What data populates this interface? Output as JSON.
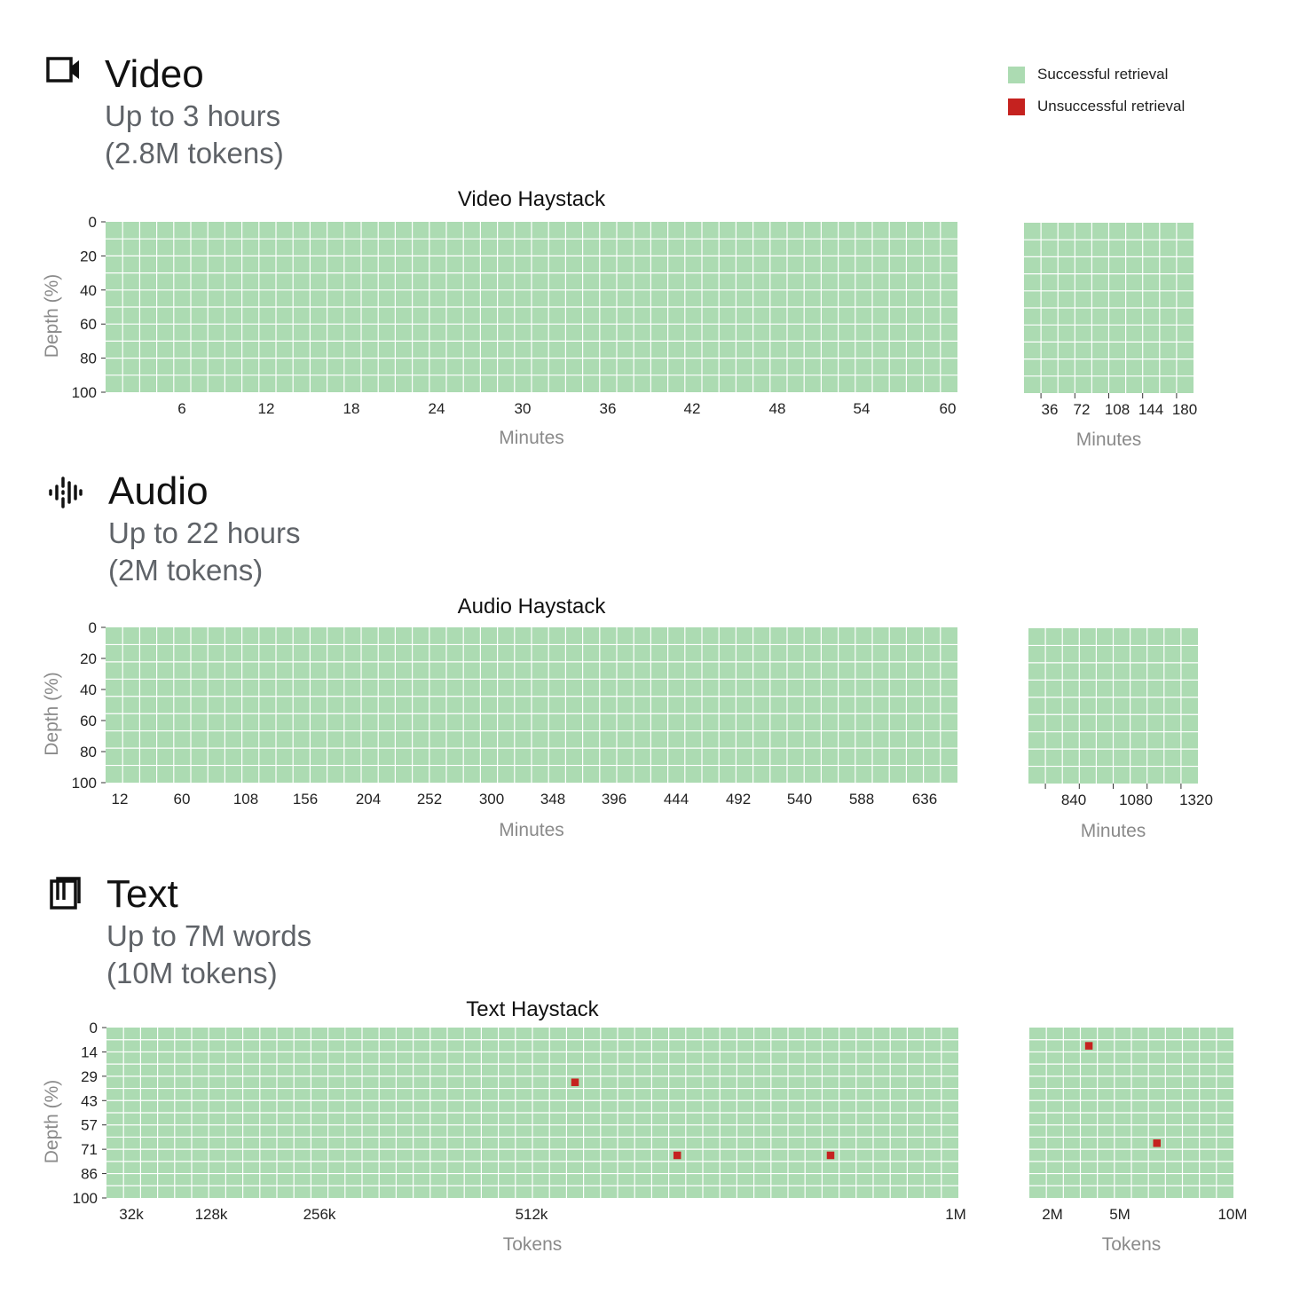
{
  "legend": {
    "success_label": "Successful retrieval",
    "fail_label": "Unsuccessful retrieval",
    "success_color": "#acdbb2",
    "fail_color": "#c5221f"
  },
  "sections": {
    "video": {
      "title": "Video",
      "line1": "Up to 3 hours",
      "line2": "(2.8M tokens)",
      "icon": "video-camera-icon"
    },
    "audio": {
      "title": "Audio",
      "line1": "Up to 22 hours",
      "line2": "(2M tokens)",
      "icon": "audio-waveform-icon"
    },
    "text": {
      "title": "Text",
      "line1": "Up to 7M words",
      "line2": "(10M tokens)",
      "icon": "book-icon"
    }
  },
  "chart_data": [
    {
      "id": "video-main",
      "type": "heatmap",
      "title": "Video Haystack",
      "xlabel": "Minutes",
      "ylabel": "Depth (%)",
      "cols": 50,
      "rows": 10,
      "xlim": [
        0,
        60
      ],
      "xticks": [
        "6",
        "12",
        "18",
        "24",
        "30",
        "36",
        "42",
        "48",
        "54",
        "60"
      ],
      "yticks": [
        "0",
        "20",
        "40",
        "60",
        "80",
        "100"
      ],
      "failures": []
    },
    {
      "id": "video-ext",
      "type": "heatmap",
      "title": "",
      "xlabel": "Minutes",
      "ylabel": "",
      "cols": 10,
      "rows": 10,
      "xlim": [
        0,
        180
      ],
      "xticks": [
        "36",
        "72",
        "108",
        "144",
        "180"
      ],
      "yticks": [],
      "failures": []
    },
    {
      "id": "audio-main",
      "type": "heatmap",
      "title": "Audio Haystack",
      "xlabel": "Minutes",
      "ylabel": "Depth (%)",
      "cols": 50,
      "rows": 9,
      "xlim": [
        0,
        660
      ],
      "xticks": [
        "12",
        "60",
        "108",
        "156",
        "204",
        "252",
        "300",
        "348",
        "396",
        "444",
        "492",
        "540",
        "588",
        "636"
      ],
      "yticks": [
        "0",
        "20",
        "40",
        "60",
        "80",
        "100"
      ],
      "failures": []
    },
    {
      "id": "audio-ext",
      "type": "heatmap",
      "title": "",
      "xlabel": "Minutes",
      "ylabel": "",
      "cols": 10,
      "rows": 9,
      "xlim": [
        660,
        1320
      ],
      "xticks": [
        "840",
        "1080",
        "1320"
      ],
      "yticks": [],
      "failures": []
    },
    {
      "id": "text-main",
      "type": "heatmap",
      "title": "Text Haystack",
      "xlabel": "Tokens",
      "ylabel": "Depth (%)",
      "cols": 50,
      "rows": 14,
      "xlim": [
        0,
        1000000
      ],
      "xticks": [
        "32k",
        "128k",
        "256k",
        "512k",
        "1M"
      ],
      "yticks": [
        "0",
        "14",
        "29",
        "43",
        "57",
        "71",
        "86",
        "100"
      ],
      "failures": [
        [
          27,
          4
        ],
        [
          33,
          10
        ],
        [
          42,
          10
        ]
      ]
    },
    {
      "id": "text-ext",
      "type": "heatmap",
      "title": "",
      "xlabel": "Tokens",
      "ylabel": "",
      "cols": 12,
      "rows": 14,
      "xlim": [
        1000000,
        10000000
      ],
      "xticks": [
        "2M",
        "5M",
        "10M"
      ],
      "yticks": [],
      "failures": [
        [
          3,
          1
        ],
        [
          7,
          9
        ]
      ]
    }
  ]
}
